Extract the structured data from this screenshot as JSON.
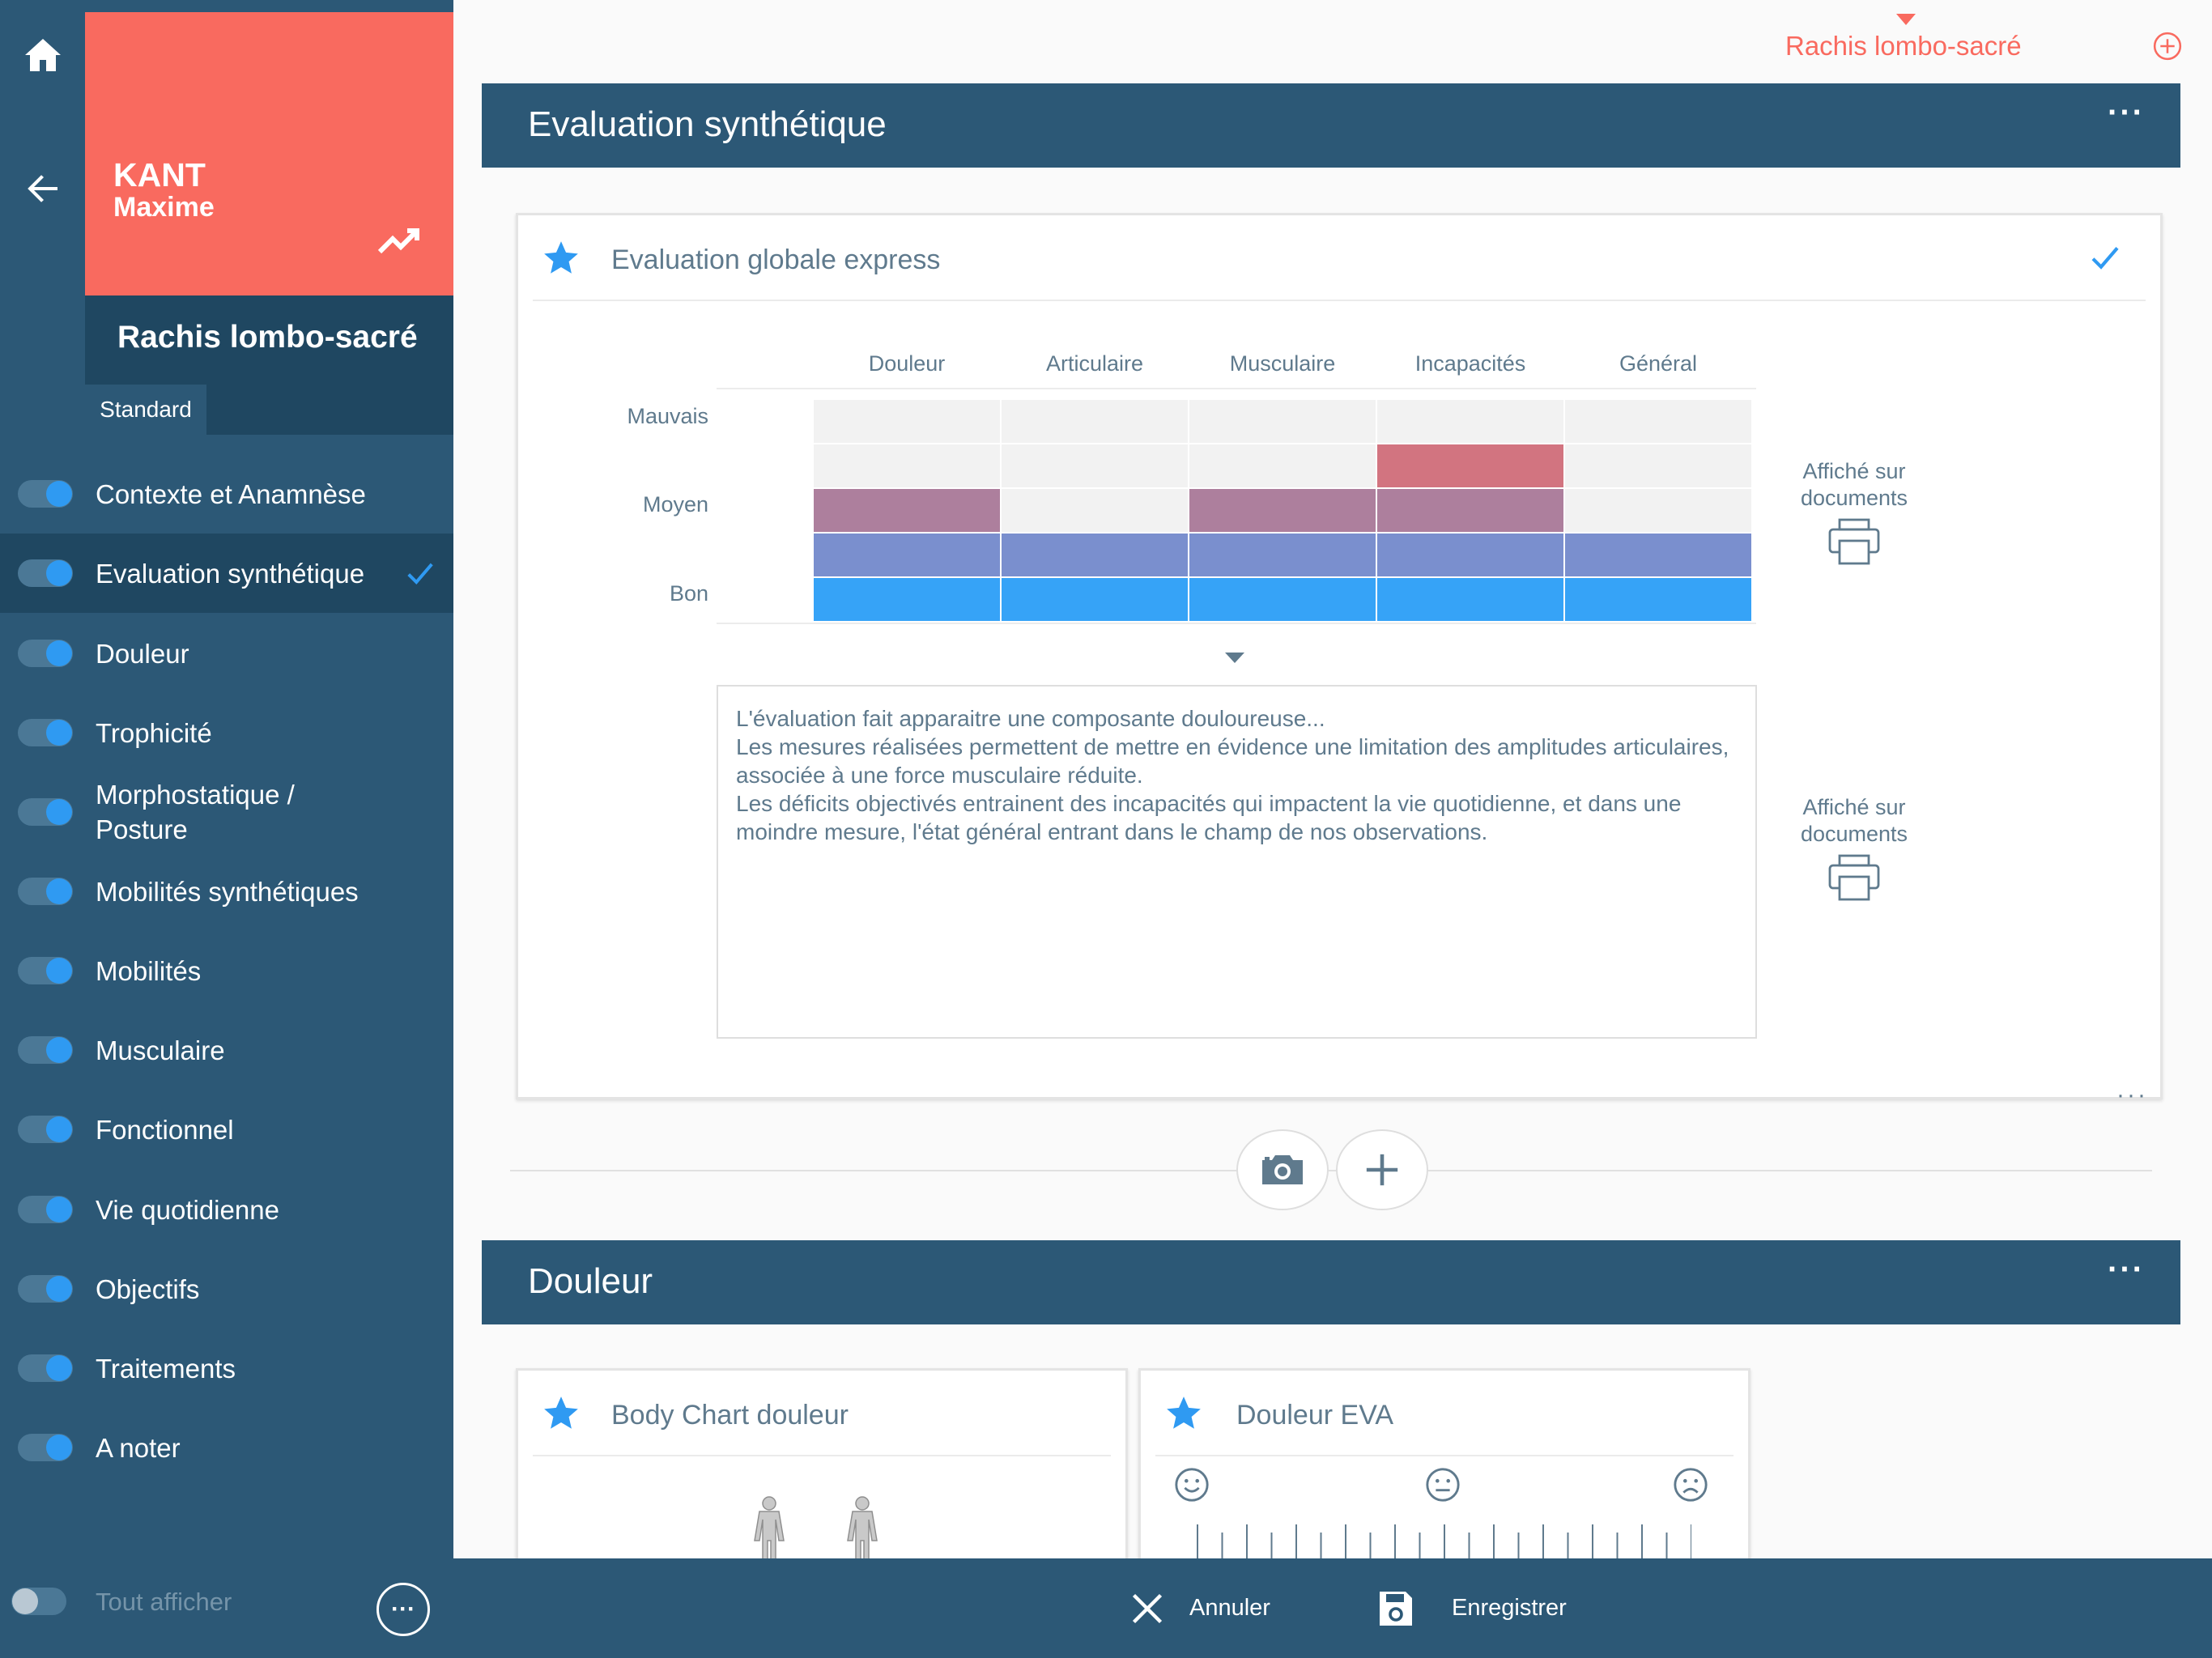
{
  "rail": {
    "home_icon": "home-icon",
    "back_icon": "arrow-left-icon"
  },
  "patient": {
    "last_name": "KANT",
    "first_name": "Maxime",
    "trend_icon": "trending-up-icon"
  },
  "region": {
    "title": "Rachis lombo-sacré",
    "tab": "Standard"
  },
  "nav": {
    "items": [
      {
        "label": "Contexte et Anamnèse",
        "enabled": true,
        "active": false,
        "checked": false
      },
      {
        "label": "Evaluation synthétique",
        "enabled": true,
        "active": true,
        "checked": true
      },
      {
        "label": "Douleur",
        "enabled": true,
        "active": false,
        "checked": false
      },
      {
        "label": "Trophicité",
        "enabled": true,
        "active": false,
        "checked": false
      },
      {
        "label": "Morphostatique /\nPosture",
        "enabled": true,
        "active": false,
        "checked": false
      },
      {
        "label": "Mobilités synthétiques",
        "enabled": true,
        "active": false,
        "checked": false
      },
      {
        "label": "Mobilités",
        "enabled": true,
        "active": false,
        "checked": false
      },
      {
        "label": "Musculaire",
        "enabled": true,
        "active": false,
        "checked": false
      },
      {
        "label": "Fonctionnel",
        "enabled": true,
        "active": false,
        "checked": false
      },
      {
        "label": "Vie quotidienne",
        "enabled": true,
        "active": false,
        "checked": false
      },
      {
        "label": "Objectifs",
        "enabled": true,
        "active": false,
        "checked": false
      },
      {
        "label": "Traitements",
        "enabled": true,
        "active": false,
        "checked": false
      },
      {
        "label": "A noter",
        "enabled": true,
        "active": false,
        "checked": false
      }
    ],
    "show_all_label": "Tout afficher",
    "show_all_enabled": false,
    "more_label": "···"
  },
  "header": {
    "region_selector": "Rachis lombo-sacré",
    "add_icon": "plus-circle-icon"
  },
  "sections": {
    "eval": {
      "title": "Evaluation synthétique",
      "more": "···"
    },
    "douleur": {
      "title": "Douleur",
      "more": "···"
    }
  },
  "eval_card": {
    "title": "Evaluation globale express",
    "columns": [
      "Douleur",
      "Articulaire",
      "Musculaire",
      "Incapacités",
      "Général"
    ],
    "row_labels": {
      "top": "Mauvais",
      "middle": "Moyen",
      "bottom": "Bon"
    },
    "levels_count": 5,
    "scores": [
      3,
      2,
      3,
      4,
      2
    ],
    "level_colors": [
      "#36a3f7",
      "#7a8fce",
      "#ad7f9d",
      "#d27480",
      "#f2f2f2"
    ],
    "displayed_label": "Affiché sur\ndocuments",
    "print_icon": "printer-icon",
    "text": "L'évaluation fait apparaitre une composante douloureuse...\nLes mesures réalisées permettent de mettre en évidence une limitation des amplitudes articulaires, associée à une force musculaire réduite.\nLes déficits objectivés entrainent des incapacités qui impactent la vie quotidienne, et dans une moindre mesure, l'état général entrant dans le champ de nos observations.",
    "more": "···"
  },
  "add_row": {
    "camera_icon": "camera-icon",
    "add_icon": "plus-icon"
  },
  "body_chart_card": {
    "title": "Body Chart douleur"
  },
  "eva_card": {
    "title": "Douleur EVA"
  },
  "toolbar": {
    "cancel_label": "Annuler",
    "save_label": "Enregistrer"
  },
  "colors": {
    "primary": "#2c5876",
    "primary_dark": "#1f4761",
    "accent": "#f96a5f",
    "blue": "#2f9af2"
  }
}
